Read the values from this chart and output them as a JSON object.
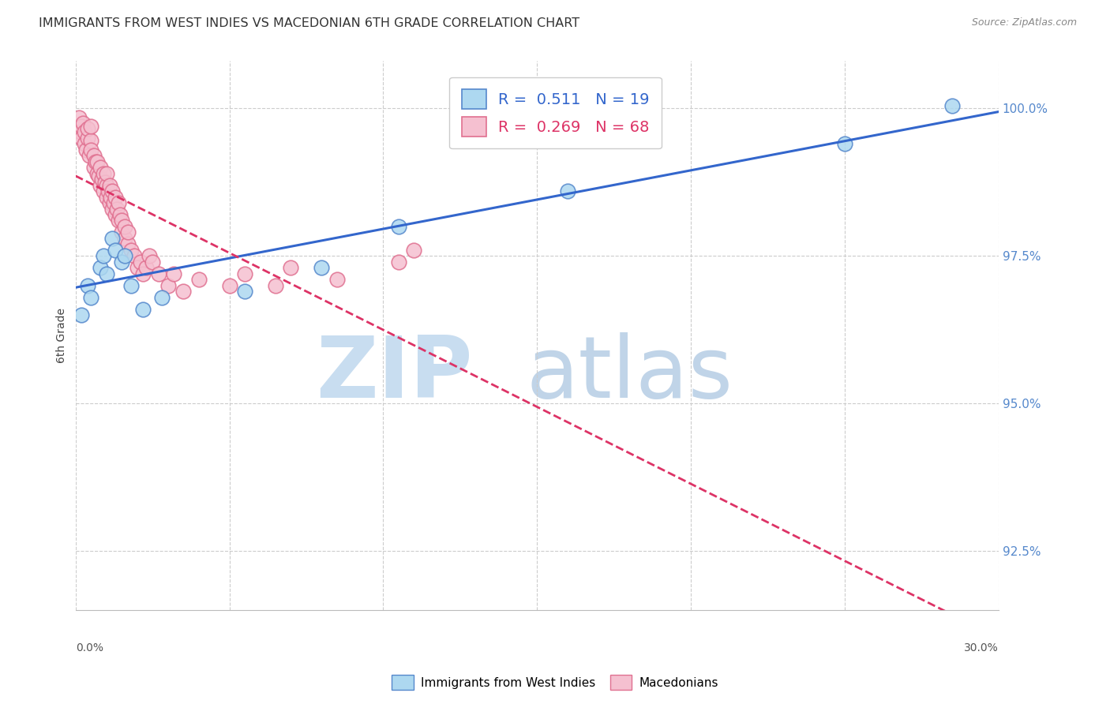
{
  "title": "IMMIGRANTS FROM WEST INDIES VS MACEDONIAN 6TH GRADE CORRELATION CHART",
  "source": "Source: ZipAtlas.com",
  "ylabel_label": "6th Grade",
  "xmin": 0.0,
  "xmax": 30.0,
  "ymin": 91.5,
  "ymax": 100.8,
  "yticks": [
    92.5,
    95.0,
    97.5,
    100.0
  ],
  "legend_blue_label": "Immigrants from West Indies",
  "legend_pink_label": "Macedonians",
  "r_blue": "0.511",
  "n_blue": "19",
  "r_pink": "0.269",
  "n_pink": "68",
  "blue_scatter_x": [
    0.2,
    0.4,
    0.5,
    0.8,
    0.9,
    1.0,
    1.2,
    1.3,
    1.5,
    1.6,
    1.8,
    2.2,
    2.8,
    5.5,
    8.0,
    10.5,
    16.0,
    25.0,
    28.5
  ],
  "blue_scatter_y": [
    96.5,
    97.0,
    96.8,
    97.3,
    97.5,
    97.2,
    97.8,
    97.6,
    97.4,
    97.5,
    97.0,
    96.6,
    96.8,
    96.9,
    97.3,
    98.0,
    98.6,
    99.4,
    100.05
  ],
  "pink_scatter_x": [
    0.1,
    0.15,
    0.2,
    0.2,
    0.25,
    0.3,
    0.3,
    0.35,
    0.4,
    0.4,
    0.45,
    0.5,
    0.5,
    0.5,
    0.6,
    0.6,
    0.65,
    0.7,
    0.7,
    0.75,
    0.8,
    0.8,
    0.85,
    0.9,
    0.9,
    0.95,
    1.0,
    1.0,
    1.0,
    1.05,
    1.1,
    1.1,
    1.15,
    1.2,
    1.2,
    1.25,
    1.3,
    1.3,
    1.35,
    1.4,
    1.4,
    1.45,
    1.5,
    1.5,
    1.6,
    1.6,
    1.7,
    1.7,
    1.8,
    1.9,
    2.0,
    2.1,
    2.2,
    2.3,
    2.4,
    2.5,
    2.7,
    3.0,
    3.2,
    3.5,
    4.0,
    5.0,
    5.5,
    6.5,
    7.0,
    8.5,
    10.5,
    11.0
  ],
  "pink_scatter_y": [
    99.85,
    99.6,
    99.7,
    99.5,
    99.75,
    99.4,
    99.6,
    99.3,
    99.5,
    99.65,
    99.2,
    99.45,
    99.3,
    99.7,
    99.0,
    99.2,
    99.1,
    98.9,
    99.1,
    98.85,
    98.7,
    99.0,
    98.8,
    98.6,
    98.9,
    98.75,
    98.5,
    98.7,
    98.9,
    98.6,
    98.4,
    98.7,
    98.5,
    98.3,
    98.6,
    98.4,
    98.2,
    98.5,
    98.3,
    98.1,
    98.4,
    98.2,
    97.9,
    98.1,
    97.8,
    98.0,
    97.7,
    97.9,
    97.6,
    97.5,
    97.3,
    97.4,
    97.2,
    97.3,
    97.5,
    97.4,
    97.2,
    97.0,
    97.2,
    96.9,
    97.1,
    97.0,
    97.2,
    97.0,
    97.3,
    97.1,
    97.4,
    97.6
  ],
  "blue_color": "#add8f0",
  "blue_edge_color": "#5588cc",
  "pink_color": "#f5c0d0",
  "pink_edge_color": "#e07090",
  "blue_line_color": "#3366cc",
  "pink_line_color": "#dd3366",
  "background_color": "#ffffff",
  "grid_color": "#cccccc",
  "title_color": "#333333",
  "axis_tick_color": "#5588cc",
  "watermark_zip_color": "#c8ddf0",
  "watermark_atlas_color": "#c0d4e8"
}
